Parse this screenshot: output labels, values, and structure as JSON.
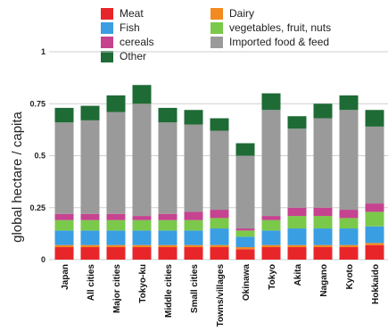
{
  "chart_data": {
    "type": "bar",
    "stacked": true,
    "title": "",
    "xlabel": "",
    "ylabel": "global hectare / capita",
    "ylim": [
      0,
      1
    ],
    "yticks": [
      {
        "value": 0,
        "label": "0"
      },
      {
        "value": 0.25,
        "label": "0.25"
      },
      {
        "value": 0.5,
        "label": "0.5"
      },
      {
        "value": 0.75,
        "label": "0.75"
      },
      {
        "value": 1,
        "label": "1"
      }
    ],
    "grid": true,
    "legend_position": "top",
    "categories": [
      "Japan",
      "All cities",
      "Major cities",
      "Tokyo-ku",
      "Middle cities",
      "Small cities",
      "Towns/villages",
      "Okinawa",
      "Tokyo",
      "Akita",
      "Nagano",
      "Kyoto",
      "Hokkaido"
    ],
    "series": [
      {
        "name": "Meat",
        "color": "#e8262a",
        "values": [
          0.06,
          0.06,
          0.06,
          0.06,
          0.06,
          0.06,
          0.06,
          0.05,
          0.06,
          0.06,
          0.06,
          0.06,
          0.07
        ]
      },
      {
        "name": "Dairy",
        "color": "#f28a20",
        "values": [
          0.01,
          0.01,
          0.01,
          0.01,
          0.01,
          0.01,
          0.01,
          0.01,
          0.01,
          0.01,
          0.01,
          0.01,
          0.01
        ]
      },
      {
        "name": "Fish",
        "color": "#3a9ee2",
        "values": [
          0.07,
          0.07,
          0.07,
          0.07,
          0.07,
          0.07,
          0.08,
          0.05,
          0.07,
          0.08,
          0.08,
          0.08,
          0.08
        ]
      },
      {
        "name": "vegetables, fruit, nuts",
        "color": "#7bc94a",
        "values": [
          0.05,
          0.05,
          0.05,
          0.05,
          0.05,
          0.05,
          0.05,
          0.03,
          0.05,
          0.06,
          0.06,
          0.05,
          0.07
        ]
      },
      {
        "name": "cereals",
        "color": "#c5438f",
        "values": [
          0.03,
          0.03,
          0.03,
          0.02,
          0.03,
          0.04,
          0.04,
          0.01,
          0.02,
          0.04,
          0.04,
          0.04,
          0.04
        ]
      },
      {
        "name": "Imported food & feed",
        "color": "#9a9a9a",
        "values": [
          0.44,
          0.45,
          0.49,
          0.54,
          0.44,
          0.42,
          0.38,
          0.35,
          0.51,
          0.38,
          0.43,
          0.48,
          0.37
        ]
      },
      {
        "name": "Other",
        "color": "#1e6b35",
        "values": [
          0.07,
          0.07,
          0.08,
          0.09,
          0.07,
          0.07,
          0.06,
          0.06,
          0.08,
          0.06,
          0.07,
          0.07,
          0.08
        ]
      }
    ]
  },
  "legend": [
    {
      "label": "Meat",
      "color": "#e8262a"
    },
    {
      "label": "Fish",
      "color": "#3a9ee2"
    },
    {
      "label": "cereals",
      "color": "#c5438f"
    },
    {
      "label": "Other",
      "color": "#1e6b35"
    },
    {
      "label": "Dairy",
      "color": "#f28a20"
    },
    {
      "label": "vegetables, fruit, nuts",
      "color": "#7bc94a"
    },
    {
      "label": "Imported food & feed",
      "color": "#9a9a9a"
    }
  ]
}
